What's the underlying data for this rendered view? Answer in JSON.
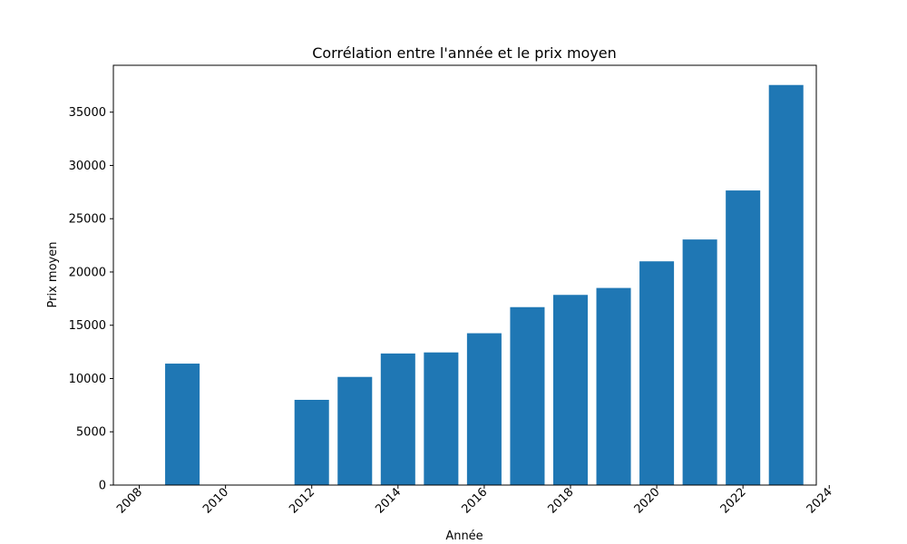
{
  "chart_data": {
    "type": "bar",
    "title": "Corrélation entre l'année et le prix moyen",
    "xlabel": "Année",
    "ylabel": "Prix moyen",
    "x": [
      2009,
      2012,
      2013,
      2014,
      2015,
      2016,
      2017,
      2018,
      2019,
      2020,
      2021,
      2022,
      2023
    ],
    "values": [
      11400,
      8000,
      10150,
      12350,
      12450,
      14250,
      16700,
      17850,
      18500,
      21000,
      23050,
      27650,
      37550
    ],
    "xlim": [
      2007.4,
      2023.7
    ],
    "ylim": [
      0,
      39400
    ],
    "xticks": [
      2008,
      2010,
      2012,
      2014,
      2016,
      2018,
      2020,
      2022,
      2024
    ],
    "yticks": [
      0,
      5000,
      10000,
      15000,
      20000,
      25000,
      30000,
      35000
    ],
    "bar_width": 0.8,
    "bar_color": "#1f77b4",
    "grid": false,
    "legend": "none"
  }
}
